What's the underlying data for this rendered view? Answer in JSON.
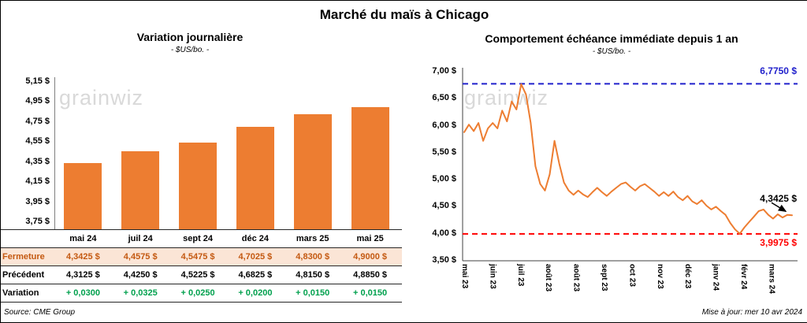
{
  "page_title": "Marché du maïs à Chicago",
  "watermark": "grainwiz",
  "source": "Source: CME Group",
  "updated": "Mise à jour: mer 10 avr 2024",
  "colors": {
    "bar_orange": "#ED7D31",
    "line_orange": "#ED7D31",
    "fermeture_text": "#C45911",
    "fermeture_bg": "#FBE5D6",
    "variation_green": "#00A04D",
    "high_blue": "#2222CC",
    "low_red": "#FF0000",
    "watermark_gray": "#D9D9D9"
  },
  "chart_data": [
    {
      "type": "bar",
      "title": "Variation journalière",
      "subtitle": "- $US/bo. -",
      "ylabel": "$US/bo.",
      "categories": [
        "mai 24",
        "juil 24",
        "sept 24",
        "déc 24",
        "mars 25",
        "mai 25"
      ],
      "values": [
        4.3425,
        4.4575,
        4.5475,
        4.7025,
        4.83,
        4.9
      ],
      "ylim": [
        3.68,
        5.15
      ],
      "yticks": [
        {
          "v": 5.15,
          "label": "5,15 $"
        },
        {
          "v": 4.95,
          "label": "4,95 $"
        },
        {
          "v": 4.75,
          "label": "4,75 $"
        },
        {
          "v": 4.55,
          "label": "4,55 $"
        },
        {
          "v": 4.35,
          "label": "4,35 $"
        },
        {
          "v": 4.15,
          "label": "4,15 $"
        },
        {
          "v": 3.95,
          "label": "3,95 $"
        },
        {
          "v": 3.75,
          "label": "3,75 $"
        }
      ],
      "table": {
        "rows": [
          {
            "label": "Fermeture",
            "values": [
              "4,3425 $",
              "4,4575 $",
              "4,5475 $",
              "4,7025 $",
              "4,8300 $",
              "4,9000 $"
            ]
          },
          {
            "label": "Précédent",
            "values": [
              "4,3125 $",
              "4,4250 $",
              "4,5225 $",
              "4,6825 $",
              "4,8150 $",
              "4,8850 $"
            ]
          },
          {
            "label": "Variation",
            "values": [
              "+ 0,0300",
              "+ 0,0325",
              "+ 0,0250",
              "+ 0,0200",
              "+ 0,0150",
              "+ 0,0150"
            ]
          }
        ]
      }
    },
    {
      "type": "line",
      "title": "Comportement échéance immédiate depuis 1 an",
      "subtitle": "- $US/bo. -",
      "ylabel": "$US/bo.",
      "x_labels": [
        "mai 23",
        "juin 23",
        "juil 23",
        "août 23",
        "août 23",
        "sept 23",
        "oct 23",
        "nov 23",
        "déc 23",
        "janv 24",
        "févr 24",
        "mars 24"
      ],
      "ylim": [
        3.5,
        7.0
      ],
      "yticks": [
        {
          "v": 7.0,
          "label": "7,00 $"
        },
        {
          "v": 6.5,
          "label": "6,50 $"
        },
        {
          "v": 6.0,
          "label": "6,00 $"
        },
        {
          "v": 5.5,
          "label": "5,50 $"
        },
        {
          "v": 5.0,
          "label": "5,00 $"
        },
        {
          "v": 4.5,
          "label": "4,50 $"
        },
        {
          "v": 4.0,
          "label": "4,00 $"
        },
        {
          "v": 3.5,
          "label": "3,50 $"
        }
      ],
      "series": [
        {
          "name": "échéance immédiate",
          "values": [
            5.88,
            6.02,
            5.9,
            6.05,
            5.72,
            5.95,
            6.05,
            5.95,
            6.28,
            6.08,
            6.45,
            6.3,
            6.77,
            6.58,
            6.05,
            5.25,
            4.92,
            4.8,
            5.1,
            5.72,
            5.3,
            4.95,
            4.8,
            4.72,
            4.8,
            4.73,
            4.68,
            4.77,
            4.85,
            4.77,
            4.7,
            4.78,
            4.85,
            4.92,
            4.95,
            4.87,
            4.8,
            4.88,
            4.92,
            4.85,
            4.78,
            4.7,
            4.77,
            4.7,
            4.78,
            4.68,
            4.62,
            4.7,
            4.6,
            4.55,
            4.62,
            4.52,
            4.45,
            4.5,
            4.42,
            4.35,
            4.2,
            4.08,
            4.0,
            4.12,
            4.22,
            4.32,
            4.42,
            4.45,
            4.35,
            4.28,
            4.36,
            4.3,
            4.35,
            4.3425
          ]
        }
      ],
      "high_line": {
        "value": 6.775,
        "label": "6,7750 $"
      },
      "low_line": {
        "value": 3.9975,
        "label": "3,9975 $"
      },
      "last_point_label": "4,3425 $"
    }
  ]
}
